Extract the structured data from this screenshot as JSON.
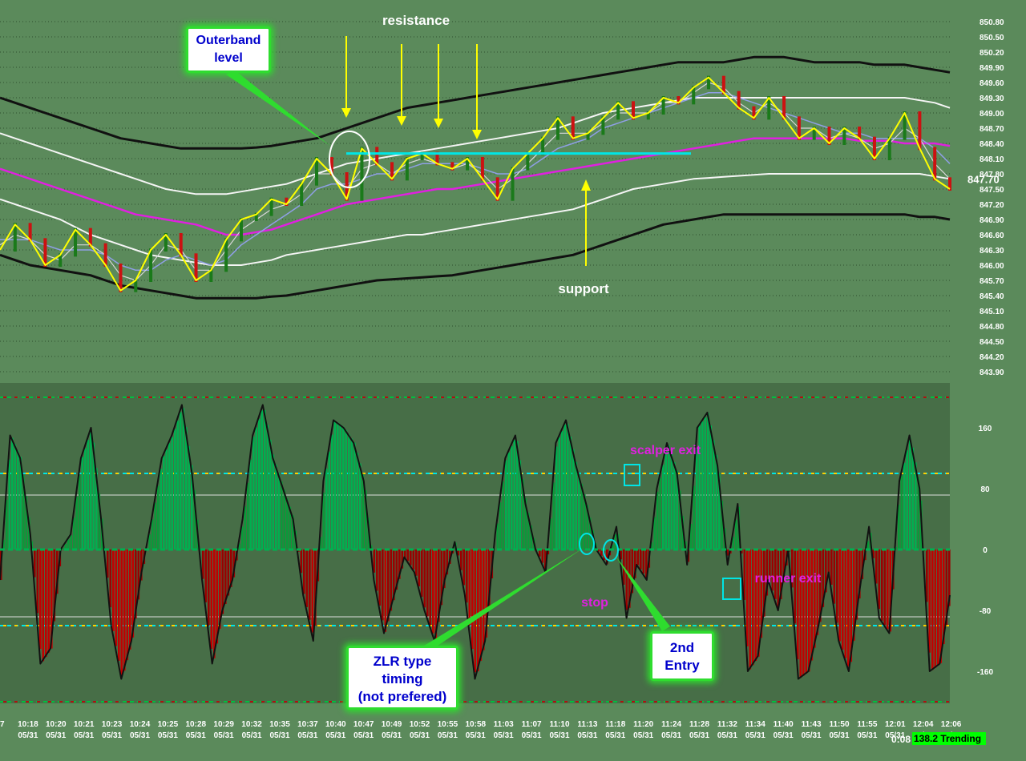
{
  "chart_data": [
    {
      "type": "line",
      "title": "",
      "ylim": [
        843.9,
        851.0
      ],
      "y_ticks": [
        "850.80",
        "850.50",
        "850.20",
        "849.90",
        "849.60",
        "849.30",
        "849.00",
        "848.70",
        "848.40",
        "848.10",
        "847.80",
        "847.50",
        "847.20",
        "846.90",
        "846.60",
        "846.30",
        "846.00",
        "845.70",
        "845.40",
        "845.10",
        "844.80",
        "844.50",
        "844.20",
        "843.90"
      ],
      "last_price": "847.70",
      "grid": true,
      "annotations": {
        "resistance": "resistance",
        "support": "support",
        "outerband": "Outerband level"
      },
      "resistance_level": 848.2,
      "series": [
        {
          "name": "",
          "role": "price",
          "color": "#ffff00",
          "values": [
            846.3,
            846.8,
            846.5,
            846.0,
            846.2,
            846.7,
            846.4,
            846.0,
            845.5,
            845.7,
            846.3,
            846.6,
            846.2,
            845.7,
            845.9,
            846.5,
            846.9,
            847.0,
            847.3,
            847.2,
            847.6,
            848.1,
            847.8,
            847.3,
            848.3,
            848.0,
            847.7,
            848.1,
            848.2,
            848.0,
            847.9,
            848.1,
            847.7,
            847.3,
            847.9,
            848.2,
            848.5,
            848.9,
            848.5,
            848.6,
            848.9,
            849.2,
            848.9,
            849.0,
            849.3,
            849.2,
            849.5,
            849.7,
            849.4,
            849.1,
            848.9,
            849.3,
            848.9,
            848.5,
            848.7,
            848.4,
            848.7,
            848.5,
            848.1,
            848.5,
            849.0,
            848.3,
            847.7,
            847.5
          ]
        },
        {
          "name": "",
          "role": "ma-fast",
          "color": "#d8d8d8",
          "values": [
            846.4,
            846.6,
            846.5,
            846.2,
            846.1,
            846.4,
            846.4,
            846.2,
            845.8,
            845.7,
            846.0,
            846.4,
            846.3,
            845.9,
            845.9,
            846.3,
            846.7,
            846.9,
            847.1,
            847.2,
            847.4,
            847.8,
            847.8,
            847.5,
            847.9,
            848.0,
            847.8,
            848.0,
            848.1,
            848.0,
            847.9,
            848.0,
            847.8,
            847.5,
            847.7,
            848.0,
            848.3,
            848.6,
            848.6,
            848.6,
            848.8,
            849.0,
            849.0,
            849.0,
            849.2,
            849.2,
            849.4,
            849.6,
            849.5,
            849.2,
            849.0,
            849.2,
            849.0,
            848.7,
            848.7,
            848.5,
            848.6,
            848.5,
            848.3,
            848.4,
            848.7,
            848.5,
            848.0,
            847.7
          ]
        },
        {
          "name": "",
          "role": "ma-slow",
          "color": "#8f9fe6",
          "values": [
            846.5,
            846.5,
            846.5,
            846.4,
            846.3,
            846.3,
            846.3,
            846.2,
            846.0,
            845.9,
            845.9,
            846.1,
            846.2,
            846.1,
            846.0,
            846.1,
            846.4,
            846.6,
            846.8,
            847.0,
            847.2,
            847.5,
            847.6,
            847.6,
            847.7,
            847.8,
            847.8,
            847.9,
            848.0,
            848.0,
            848.0,
            848.0,
            847.9,
            847.8,
            847.8,
            847.9,
            848.1,
            848.3,
            848.4,
            848.5,
            848.7,
            848.8,
            848.9,
            849.0,
            849.1,
            849.2,
            849.3,
            849.4,
            849.4,
            849.3,
            849.2,
            849.1,
            849.0,
            848.9,
            848.8,
            848.7,
            848.6,
            848.6,
            848.5,
            848.5,
            848.5,
            848.5,
            848.3,
            848.0
          ]
        },
        {
          "name": "",
          "role": "band-mid",
          "color": "#e020e0",
          "values": [
            847.9,
            847.8,
            847.7,
            847.6,
            847.5,
            847.4,
            847.3,
            847.2,
            847.1,
            847.0,
            846.95,
            846.9,
            846.85,
            846.8,
            846.7,
            846.6,
            846.6,
            846.65,
            846.7,
            846.8,
            846.9,
            847.0,
            847.1,
            847.2,
            847.25,
            847.3,
            847.35,
            847.4,
            847.45,
            847.5,
            847.5,
            847.55,
            847.6,
            847.65,
            847.7,
            847.75,
            847.8,
            847.85,
            847.9,
            847.95,
            848.0,
            848.05,
            848.1,
            848.15,
            848.2,
            848.25,
            848.3,
            848.35,
            848.4,
            848.45,
            848.5,
            848.5,
            848.5,
            848.5,
            848.5,
            848.5,
            848.5,
            848.45,
            848.45,
            848.45,
            848.4,
            848.4,
            848.4,
            848.35
          ]
        },
        {
          "name": "",
          "role": "band-inner-upper",
          "color": "#f5f5f5",
          "values": [
            848.6,
            848.5,
            848.4,
            848.3,
            848.2,
            848.1,
            848.0,
            847.9,
            847.8,
            847.7,
            847.6,
            847.5,
            847.45,
            847.4,
            847.4,
            847.4,
            847.45,
            847.5,
            847.55,
            847.6,
            847.7,
            847.8,
            847.9,
            848.0,
            848.05,
            848.1,
            848.15,
            848.2,
            848.25,
            848.3,
            848.35,
            848.4,
            848.45,
            848.5,
            848.55,
            848.6,
            848.65,
            848.7,
            848.8,
            848.9,
            849.0,
            849.05,
            849.1,
            849.15,
            849.2,
            849.25,
            849.3,
            849.3,
            849.3,
            849.3,
            849.3,
            849.3,
            849.3,
            849.3,
            849.3,
            849.3,
            849.3,
            849.3,
            849.3,
            849.3,
            849.3,
            849.25,
            849.2,
            849.1
          ]
        },
        {
          "name": "",
          "role": "band-inner-lower",
          "color": "#f5f5f5",
          "values": [
            847.3,
            847.2,
            847.1,
            847.0,
            846.9,
            846.75,
            846.6,
            846.5,
            846.4,
            846.3,
            846.2,
            846.15,
            846.1,
            846.05,
            846.0,
            846.0,
            846.0,
            846.05,
            846.1,
            846.2,
            846.25,
            846.3,
            846.35,
            846.4,
            846.45,
            846.5,
            846.55,
            846.6,
            846.6,
            846.65,
            846.7,
            846.75,
            846.8,
            846.85,
            846.9,
            846.95,
            847.0,
            847.05,
            847.1,
            847.2,
            847.3,
            847.4,
            847.5,
            847.55,
            847.6,
            847.65,
            847.7,
            847.72,
            847.74,
            847.76,
            847.78,
            847.8,
            847.8,
            847.8,
            847.8,
            847.8,
            847.8,
            847.8,
            847.8,
            847.8,
            847.8,
            847.8,
            847.75,
            847.7
          ]
        },
        {
          "name": "",
          "role": "band-outer-upper",
          "color": "#111111",
          "values": [
            849.3,
            849.2,
            849.1,
            849.0,
            848.9,
            848.8,
            848.7,
            848.6,
            848.5,
            848.45,
            848.4,
            848.35,
            848.3,
            848.3,
            848.3,
            848.3,
            848.3,
            848.32,
            848.35,
            848.4,
            848.45,
            848.5,
            848.6,
            848.7,
            848.8,
            848.9,
            849.0,
            849.1,
            849.15,
            849.2,
            849.25,
            849.3,
            849.35,
            849.4,
            849.45,
            849.5,
            849.55,
            849.6,
            849.65,
            849.7,
            849.75,
            849.8,
            849.85,
            849.9,
            849.95,
            850.0,
            850.0,
            850.0,
            850.0,
            850.05,
            850.1,
            850.1,
            850.1,
            850.05,
            850.0,
            850.0,
            850.0,
            850.0,
            849.95,
            849.95,
            849.95,
            849.9,
            849.85,
            849.8
          ]
        },
        {
          "name": "",
          "role": "band-outer-lower",
          "color": "#111111",
          "values": [
            846.2,
            846.1,
            846.0,
            845.95,
            845.9,
            845.85,
            845.8,
            845.7,
            845.6,
            845.55,
            845.5,
            845.45,
            845.4,
            845.35,
            845.35,
            845.35,
            845.35,
            845.35,
            845.38,
            845.4,
            845.45,
            845.5,
            845.55,
            845.6,
            845.65,
            845.7,
            845.72,
            845.74,
            845.76,
            845.78,
            845.8,
            845.85,
            845.9,
            845.95,
            846.0,
            846.05,
            846.1,
            846.15,
            846.2,
            846.3,
            846.4,
            846.5,
            846.6,
            846.7,
            846.8,
            846.85,
            846.9,
            846.95,
            847.0,
            847.0,
            847.0,
            847.0,
            847.0,
            847.0,
            847.0,
            847.0,
            847.0,
            847.0,
            847.0,
            847.0,
            847.0,
            846.95,
            846.95,
            846.9
          ]
        }
      ]
    },
    {
      "type": "bar",
      "title": "",
      "ylim": [
        -200,
        200
      ],
      "y_ticks": [
        "160",
        "80",
        "0",
        "-80",
        "-160"
      ],
      "levels": [
        100,
        -100,
        200,
        -200
      ],
      "x_ticks": [
        "7",
        "10:18",
        "10:20",
        "10:21",
        "10:23",
        "10:24",
        "10:25",
        "10:28",
        "10:29",
        "10:32",
        "10:35",
        "10:37",
        "10:40",
        "10:47",
        "10:49",
        "10:52",
        "10:55",
        "10:58",
        "11:03",
        "11:07",
        "11:10",
        "11:13",
        "11:18",
        "11:20",
        "11:24",
        "11:28",
        "11:32",
        "11:34",
        "11:40",
        "11:43",
        "11:50",
        "11:55",
        "12:01",
        "12:04",
        "12:06"
      ],
      "x_date": "05/31",
      "annotations": {
        "scalper_exit": "scalper exit",
        "runner_exit": "runner exit",
        "stop": "stop",
        "second_entry": "2nd Entry",
        "zlr": "ZLR type timing (not prefered)"
      },
      "values": [
        -40,
        150,
        120,
        20,
        -150,
        -130,
        0,
        20,
        120,
        160,
        40,
        -100,
        -170,
        -120,
        -30,
        40,
        120,
        150,
        190,
        100,
        -40,
        -150,
        -80,
        -40,
        40,
        150,
        190,
        120,
        80,
        40,
        -60,
        -120,
        90,
        170,
        160,
        140,
        90,
        -40,
        -110,
        -60,
        -10,
        -30,
        -80,
        -120,
        -40,
        10,
        -60,
        -170,
        -120,
        20,
        120,
        150,
        60,
        0,
        -30,
        140,
        170,
        110,
        60,
        0,
        -20,
        30,
        -90,
        -20,
        -40,
        80,
        140,
        100,
        -20,
        160,
        180,
        110,
        -20,
        60,
        -160,
        -140,
        -40,
        -80,
        0,
        -170,
        -160,
        -100,
        -30,
        -120,
        -160,
        -60,
        30,
        -90,
        -110,
        90,
        150,
        80,
        -160,
        -150,
        -60
      ]
    }
  ],
  "callouts": {
    "outerband": [
      "Outerband",
      "level"
    ],
    "zlr": [
      "ZLR type",
      "timing",
      "(not prefered)"
    ],
    "second_entry": [
      "2nd",
      "Entry"
    ]
  },
  "status_bar": {
    "timer": "0:08",
    "value": "138.2",
    "label": "Trending"
  },
  "colors": {
    "background": "#5b8a5b",
    "price": "#ffff00",
    "positive_hist": "#00b050",
    "negative_hist": "#c00000",
    "resistance_line": "#00e5e5",
    "callout_border": "#2fdc2f",
    "annotation_text": "#e020e0"
  }
}
